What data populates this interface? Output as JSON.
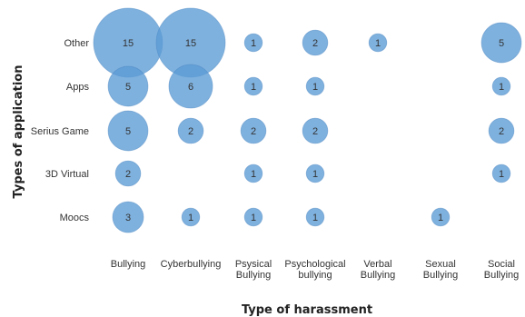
{
  "chart_data": {
    "type": "scatter",
    "subtype": "bubble",
    "title": "",
    "xlabel": "Type of harassment",
    "ylabel": "Types of application",
    "x_categories": [
      [
        "Bullying"
      ],
      [
        "Cyberbullying"
      ],
      [
        "Psysical",
        "Bullying"
      ],
      [
        "Psychological",
        "bullying"
      ],
      [
        "Verbal",
        "Bullying"
      ],
      [
        "Sexual",
        "Bullying"
      ],
      [
        "Social",
        "Bullying"
      ]
    ],
    "y_categories": [
      "Other",
      "Apps",
      "Serius Game",
      "3D Virtual",
      "Moocs"
    ],
    "bubble_color": "#5B9BD5",
    "grid": false,
    "legend": "none",
    "points": [
      {
        "x": 0,
        "y": 0,
        "value": 15
      },
      {
        "x": 1,
        "y": 0,
        "value": 15
      },
      {
        "x": 2,
        "y": 0,
        "value": 1
      },
      {
        "x": 3,
        "y": 0,
        "value": 2
      },
      {
        "x": 4,
        "y": 0,
        "value": 1
      },
      {
        "x": 6,
        "y": 0,
        "value": 5
      },
      {
        "x": 0,
        "y": 1,
        "value": 5
      },
      {
        "x": 1,
        "y": 1,
        "value": 6
      },
      {
        "x": 2,
        "y": 1,
        "value": 1
      },
      {
        "x": 3,
        "y": 1,
        "value": 1
      },
      {
        "x": 6,
        "y": 1,
        "value": 1
      },
      {
        "x": 0,
        "y": 2,
        "value": 5
      },
      {
        "x": 1,
        "y": 2,
        "value": 2
      },
      {
        "x": 2,
        "y": 2,
        "value": 2
      },
      {
        "x": 3,
        "y": 2,
        "value": 2
      },
      {
        "x": 6,
        "y": 2,
        "value": 2
      },
      {
        "x": 0,
        "y": 3,
        "value": 2
      },
      {
        "x": 2,
        "y": 3,
        "value": 1
      },
      {
        "x": 3,
        "y": 3,
        "value": 1
      },
      {
        "x": 6,
        "y": 3,
        "value": 1
      },
      {
        "x": 0,
        "y": 4,
        "value": 3
      },
      {
        "x": 1,
        "y": 4,
        "value": 1
      },
      {
        "x": 2,
        "y": 4,
        "value": 1
      },
      {
        "x": 3,
        "y": 4,
        "value": 1
      },
      {
        "x": 5,
        "y": 4,
        "value": 1
      }
    ]
  }
}
